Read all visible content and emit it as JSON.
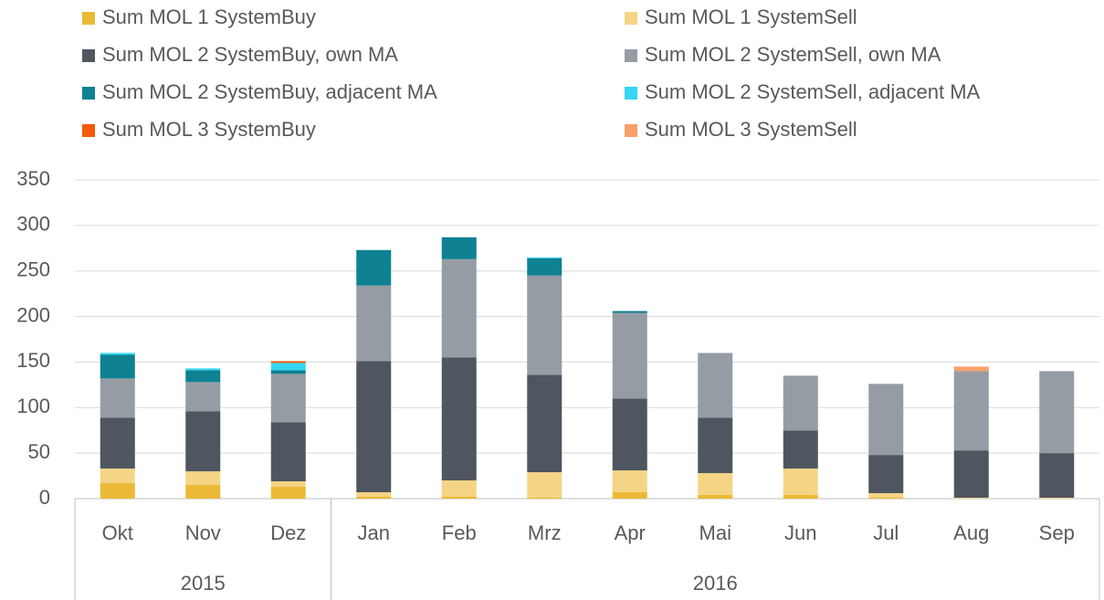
{
  "chart_data": {
    "type": "stacked_bar",
    "categories": [
      "Okt",
      "Nov",
      "Dez",
      "Jan",
      "Feb",
      "Mrz",
      "Apr",
      "Mai",
      "Jun",
      "Jul",
      "Aug",
      "Sep"
    ],
    "category_groups": [
      "2015",
      "2015",
      "2015",
      "2016",
      "2016",
      "2016",
      "2016",
      "2016",
      "2016",
      "2016",
      "2016",
      "2016"
    ],
    "ylim": [
      0,
      350
    ],
    "yticks": [
      0,
      50,
      100,
      150,
      200,
      250,
      300,
      350
    ],
    "grid": true,
    "series": [
      {
        "name": "Sum MOL 1 SystemBuy",
        "color": "#ebb935",
        "values": [
          17,
          15,
          13,
          2,
          2,
          1,
          7,
          4,
          4,
          1,
          0,
          0
        ]
      },
      {
        "name": "Sum MOL 1 SystemSell",
        "color": "#f5d585",
        "values": [
          16,
          15,
          6,
          5,
          18,
          28,
          24,
          24,
          29,
          5,
          1,
          1
        ]
      },
      {
        "name": "Sum MOL 2 SystemBuy, own MA",
        "color": "#4f565f",
        "values": [
          56,
          66,
          65,
          144,
          135,
          107,
          79,
          61,
          42,
          42,
          52,
          49
        ]
      },
      {
        "name": "Sum MOL 2 SystemSell, own MA",
        "color": "#959ca4",
        "values": [
          43,
          32,
          53,
          83,
          108,
          109,
          94,
          71,
          60,
          78,
          87,
          90
        ]
      },
      {
        "name": "Sum MOL 2 SystemBuy, adjacent MA",
        "color": "#0e8193",
        "values": [
          26,
          13,
          4,
          39,
          24,
          19,
          2,
          0,
          0,
          0,
          0,
          0
        ]
      },
      {
        "name": "Sum MOL 2 SystemSell, adjacent MA",
        "color": "#33d6f5",
        "values": [
          2,
          2,
          8,
          0,
          0,
          1,
          0,
          0,
          0,
          0,
          0,
          0
        ]
      },
      {
        "name": "Sum MOL 3 SystemBuy",
        "color": "#f55a0a",
        "values": [
          0,
          0,
          2,
          0,
          0,
          0,
          0,
          0,
          0,
          0,
          0,
          0
        ]
      },
      {
        "name": "Sum MOL 3 SystemSell",
        "color": "#f7a06a",
        "values": [
          0,
          0,
          0,
          0,
          0,
          0,
          0,
          0,
          0,
          0,
          5,
          0
        ]
      }
    ]
  }
}
